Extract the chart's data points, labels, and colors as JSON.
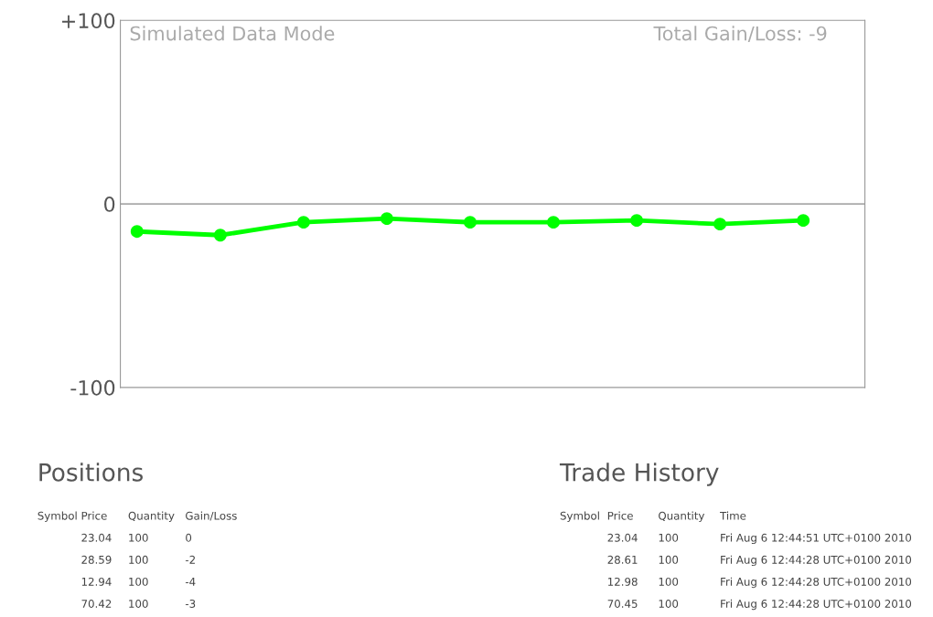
{
  "chart_data": [
    {
      "type": "line",
      "categories": [
        null,
        null,
        null,
        null,
        null,
        null,
        null,
        null,
        null
      ],
      "series": [
        {
          "color": "#00ff00",
          "values": [
            -15,
            -17,
            -10,
            -8,
            -10,
            -10,
            -9,
            -11,
            -9
          ]
        }
      ],
      "ylim": [
        -100,
        100
      ],
      "yticks": [
        {
          "value": 100,
          "label": "+100"
        },
        0,
        {
          "value": -100,
          "label": "-100"
        }
      ],
      "ref_lines": [
        {
          "axis": "y",
          "value": 0,
          "color": "#aaaaaa"
        }
      ],
      "marker": "circle",
      "line_style": "solid",
      "grid": false,
      "legend": false,
      "tick_labels": "y",
      "annotations": [
        "Simulated Data Mode",
        "Total Gain/Loss: -9"
      ]
    },
    {
      "type": "other",
      "title": "Positions",
      "annotations": [
        "Symbol",
        "Price",
        "Quantity",
        "Gain/Loss",
        null,
        "23.04",
        "100",
        "0",
        null,
        "28.59",
        "100",
        "-2",
        null,
        "12.94",
        "100",
        "-4",
        null,
        "70.42",
        "100",
        "-3"
      ]
    },
    {
      "type": "other",
      "title": "Trade History",
      "annotations": [
        "Symbol",
        "Price",
        "Quantity",
        "Time",
        null,
        "23.04",
        "100",
        "Fri Aug 6 12:44:51 UTC+0100 2010",
        null,
        "28.61",
        "100",
        "Fri Aug 6 12:44:28 UTC+0100 2010",
        null,
        "12.98",
        "100",
        "Fri Aug 6 12:44:28 UTC+0100 2010",
        null,
        "70.45",
        "100",
        "Fri Aug 6 12:44:28 UTC+0100 2010"
      ]
    }
  ]
}
